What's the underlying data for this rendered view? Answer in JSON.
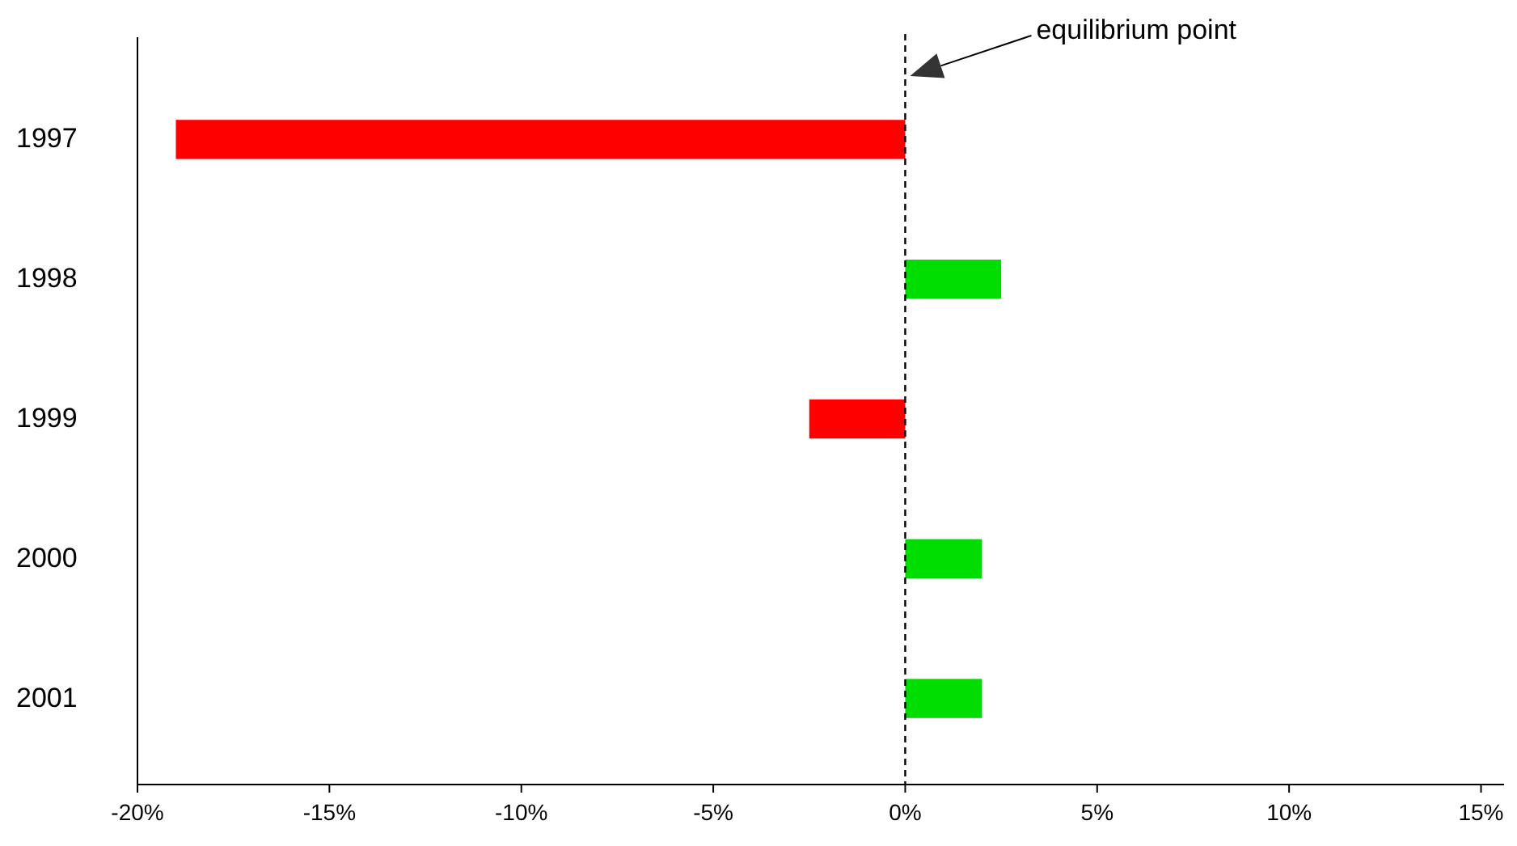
{
  "chart_data": {
    "type": "bar",
    "orientation": "horizontal",
    "categories": [
      "1997",
      "1998",
      "1999",
      "2000",
      "2001"
    ],
    "values": [
      -19,
      2.5,
      -2.5,
      2,
      2
    ],
    "colors": [
      "#ff0000",
      "#00dd00",
      "#ff0000",
      "#00dd00",
      "#00dd00"
    ],
    "xlim": [
      -20,
      15.6
    ],
    "xticks": [
      {
        "value": -20,
        "label": "-20%"
      },
      {
        "value": -15,
        "label": "-15%"
      },
      {
        "value": -10,
        "label": "-10%"
      },
      {
        "value": -5,
        "label": "-5%"
      },
      {
        "value": 0,
        "label": "0%"
      },
      {
        "value": 5,
        "label": "5%"
      },
      {
        "value": 10,
        "label": "10%"
      },
      {
        "value": 15,
        "label": "15%"
      }
    ],
    "ref_lines": [
      {
        "axis": "x",
        "value": 0,
        "color": "#000000",
        "line_style": "dashed"
      }
    ],
    "annotations": [
      "equilibrium point"
    ],
    "grid": false
  }
}
